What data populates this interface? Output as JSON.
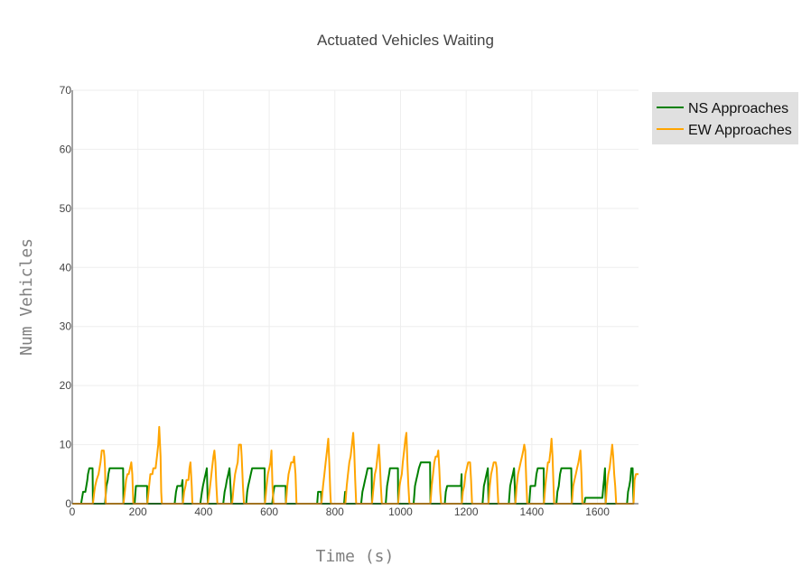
{
  "chart_data": {
    "type": "line",
    "title": "Actuated Vehicles Waiting",
    "xlabel": "Time (s)",
    "ylabel": "Num Vehicles",
    "xlim": [
      0,
      1725
    ],
    "ylim": [
      0,
      70
    ],
    "xticks": [
      0,
      200,
      400,
      600,
      800,
      1000,
      1200,
      1400,
      1600
    ],
    "yticks": [
      0,
      10,
      20,
      30,
      40,
      50,
      60,
      70
    ],
    "grid": true,
    "legend_position": "top-right",
    "series": [
      {
        "name": "NS Approaches",
        "color": "#008000",
        "points": [
          [
            0,
            0
          ],
          [
            27,
            0
          ],
          [
            30,
            1
          ],
          [
            33,
            2
          ],
          [
            40,
            2
          ],
          [
            43,
            3
          ],
          [
            46,
            4
          ],
          [
            48,
            5
          ],
          [
            52,
            6
          ],
          [
            62,
            6
          ],
          [
            63,
            0
          ],
          [
            100,
            0
          ],
          [
            104,
            3
          ],
          [
            108,
            4
          ],
          [
            110,
            5
          ],
          [
            114,
            6
          ],
          [
            155,
            6
          ],
          [
            156,
            0
          ],
          [
            190,
            0
          ],
          [
            194,
            3
          ],
          [
            228,
            3
          ],
          [
            229,
            0
          ],
          [
            312,
            0
          ],
          [
            316,
            2
          ],
          [
            320,
            3
          ],
          [
            333,
            3
          ],
          [
            336,
            4
          ],
          [
            337,
            0
          ],
          [
            390,
            0
          ],
          [
            395,
            2
          ],
          [
            398,
            3
          ],
          [
            402,
            4
          ],
          [
            406,
            5
          ],
          [
            410,
            6
          ],
          [
            413,
            0
          ],
          [
            460,
            0
          ],
          [
            464,
            2
          ],
          [
            468,
            3
          ],
          [
            471,
            4
          ],
          [
            475,
            5
          ],
          [
            479,
            6
          ],
          [
            485,
            0
          ],
          [
            530,
            0
          ],
          [
            533,
            2
          ],
          [
            536,
            3
          ],
          [
            540,
            4
          ],
          [
            544,
            5
          ],
          [
            548,
            6
          ],
          [
            586,
            6
          ],
          [
            587,
            0
          ],
          [
            609,
            0
          ],
          [
            613,
            2
          ],
          [
            616,
            3
          ],
          [
            650,
            3
          ],
          [
            651,
            0
          ],
          [
            746,
            0
          ],
          [
            749,
            2
          ],
          [
            758,
            2
          ],
          [
            759,
            0
          ],
          [
            828,
            0
          ],
          [
            831,
            2
          ],
          [
            832,
            0
          ],
          [
            880,
            0
          ],
          [
            884,
            2
          ],
          [
            888,
            3
          ],
          [
            892,
            4
          ],
          [
            896,
            5
          ],
          [
            900,
            6
          ],
          [
            912,
            6
          ],
          [
            913,
            0
          ],
          [
            955,
            0
          ],
          [
            959,
            3
          ],
          [
            962,
            4
          ],
          [
            965,
            5
          ],
          [
            968,
            6
          ],
          [
            992,
            6
          ],
          [
            993,
            0
          ],
          [
            1040,
            0
          ],
          [
            1044,
            3
          ],
          [
            1048,
            4
          ],
          [
            1052,
            5
          ],
          [
            1056,
            6
          ],
          [
            1062,
            7
          ],
          [
            1090,
            7
          ],
          [
            1091,
            0
          ],
          [
            1135,
            0
          ],
          [
            1138,
            2
          ],
          [
            1142,
            3
          ],
          [
            1184,
            3
          ],
          [
            1186,
            5
          ],
          [
            1187,
            0
          ],
          [
            1250,
            0
          ],
          [
            1254,
            3
          ],
          [
            1258,
            4
          ],
          [
            1262,
            5
          ],
          [
            1266,
            6
          ],
          [
            1268,
            0
          ],
          [
            1330,
            0
          ],
          [
            1334,
            3
          ],
          [
            1338,
            4
          ],
          [
            1342,
            5
          ],
          [
            1346,
            6
          ],
          [
            1350,
            0
          ],
          [
            1392,
            0
          ],
          [
            1396,
            3
          ],
          [
            1410,
            3
          ],
          [
            1414,
            5
          ],
          [
            1418,
            6
          ],
          [
            1436,
            6
          ],
          [
            1437,
            0
          ],
          [
            1475,
            0
          ],
          [
            1478,
            2
          ],
          [
            1482,
            3
          ],
          [
            1486,
            5
          ],
          [
            1490,
            6
          ],
          [
            1520,
            6
          ],
          [
            1522,
            0
          ],
          [
            1560,
            0
          ],
          [
            1563,
            1
          ],
          [
            1615,
            1
          ],
          [
            1618,
            3
          ],
          [
            1620,
            4
          ],
          [
            1623,
            6
          ],
          [
            1625,
            0
          ],
          [
            1690,
            0
          ],
          [
            1693,
            2
          ],
          [
            1697,
            3
          ],
          [
            1700,
            4
          ],
          [
            1703,
            6
          ],
          [
            1707,
            6
          ],
          [
            1710,
            0
          ]
        ]
      },
      {
        "name": "EW Approaches",
        "color": "#FFA500",
        "points": [
          [
            0,
            0
          ],
          [
            63,
            0
          ],
          [
            67,
            2
          ],
          [
            70,
            3
          ],
          [
            74,
            4
          ],
          [
            80,
            5
          ],
          [
            83,
            6
          ],
          [
            86,
            7
          ],
          [
            88,
            8
          ],
          [
            90,
            9
          ],
          [
            96,
            9
          ],
          [
            98,
            8
          ],
          [
            100,
            6
          ],
          [
            102,
            0
          ],
          [
            156,
            0
          ],
          [
            160,
            2
          ],
          [
            164,
            4
          ],
          [
            168,
            5
          ],
          [
            172,
            5
          ],
          [
            176,
            6
          ],
          [
            180,
            7
          ],
          [
            183,
            5
          ],
          [
            186,
            0
          ],
          [
            229,
            0
          ],
          [
            234,
            3
          ],
          [
            238,
            5
          ],
          [
            244,
            5
          ],
          [
            247,
            6
          ],
          [
            254,
            6
          ],
          [
            258,
            8
          ],
          [
            262,
            10
          ],
          [
            265,
            13
          ],
          [
            269,
            8
          ],
          [
            271,
            2
          ],
          [
            273,
            0
          ],
          [
            337,
            0
          ],
          [
            341,
            2
          ],
          [
            345,
            3
          ],
          [
            348,
            4
          ],
          [
            354,
            4
          ],
          [
            357,
            6
          ],
          [
            360,
            7
          ],
          [
            364,
            3
          ],
          [
            366,
            0
          ],
          [
            413,
            0
          ],
          [
            418,
            2
          ],
          [
            422,
            4
          ],
          [
            426,
            6
          ],
          [
            430,
            8
          ],
          [
            433,
            9
          ],
          [
            436,
            7
          ],
          [
            439,
            3
          ],
          [
            442,
            0
          ],
          [
            487,
            0
          ],
          [
            492,
            3
          ],
          [
            496,
            5
          ],
          [
            500,
            6
          ],
          [
            504,
            7
          ],
          [
            508,
            10
          ],
          [
            514,
            10
          ],
          [
            516,
            8
          ],
          [
            520,
            3
          ],
          [
            523,
            0
          ],
          [
            587,
            0
          ],
          [
            592,
            3
          ],
          [
            596,
            5
          ],
          [
            600,
            6
          ],
          [
            604,
            7
          ],
          [
            607,
            9
          ],
          [
            610,
            3
          ],
          [
            613,
            0
          ],
          [
            651,
            0
          ],
          [
            655,
            3
          ],
          [
            659,
            5
          ],
          [
            663,
            6
          ],
          [
            667,
            7
          ],
          [
            673,
            7
          ],
          [
            676,
            8
          ],
          [
            680,
            5
          ],
          [
            683,
            0
          ],
          [
            759,
            0
          ],
          [
            764,
            3
          ],
          [
            768,
            5
          ],
          [
            772,
            7
          ],
          [
            776,
            9
          ],
          [
            780,
            11
          ],
          [
            783,
            7
          ],
          [
            786,
            2
          ],
          [
            788,
            0
          ],
          [
            832,
            0
          ],
          [
            836,
            3
          ],
          [
            840,
            5
          ],
          [
            844,
            7
          ],
          [
            848,
            8
          ],
          [
            852,
            10
          ],
          [
            856,
            12
          ],
          [
            859,
            9
          ],
          [
            862,
            4
          ],
          [
            865,
            0
          ],
          [
            913,
            0
          ],
          [
            918,
            3
          ],
          [
            922,
            5
          ],
          [
            926,
            6
          ],
          [
            930,
            8
          ],
          [
            934,
            10
          ],
          [
            937,
            7
          ],
          [
            940,
            3
          ],
          [
            943,
            0
          ],
          [
            993,
            0
          ],
          [
            997,
            3
          ],
          [
            1000,
            4
          ],
          [
            1004,
            5
          ],
          [
            1007,
            7
          ],
          [
            1011,
            9
          ],
          [
            1015,
            11
          ],
          [
            1018,
            12
          ],
          [
            1021,
            7
          ],
          [
            1024,
            3
          ],
          [
            1027,
            0
          ],
          [
            1091,
            0
          ],
          [
            1095,
            3
          ],
          [
            1099,
            5
          ],
          [
            1103,
            7
          ],
          [
            1107,
            8
          ],
          [
            1112,
            8
          ],
          [
            1115,
            9
          ],
          [
            1118,
            6
          ],
          [
            1121,
            2
          ],
          [
            1124,
            0
          ],
          [
            1187,
            0
          ],
          [
            1190,
            2
          ],
          [
            1194,
            3
          ],
          [
            1198,
            5
          ],
          [
            1202,
            6
          ],
          [
            1206,
            7
          ],
          [
            1212,
            7
          ],
          [
            1215,
            4
          ],
          [
            1218,
            0
          ],
          [
            1268,
            0
          ],
          [
            1272,
            3
          ],
          [
            1276,
            5
          ],
          [
            1280,
            6
          ],
          [
            1284,
            7
          ],
          [
            1290,
            7
          ],
          [
            1293,
            6
          ],
          [
            1296,
            2
          ],
          [
            1298,
            0
          ],
          [
            1350,
            0
          ],
          [
            1354,
            3
          ],
          [
            1358,
            5
          ],
          [
            1362,
            6
          ],
          [
            1366,
            7
          ],
          [
            1370,
            8
          ],
          [
            1374,
            9
          ],
          [
            1377,
            10
          ],
          [
            1380,
            9
          ],
          [
            1383,
            4
          ],
          [
            1386,
            0
          ],
          [
            1437,
            0
          ],
          [
            1441,
            3
          ],
          [
            1445,
            5
          ],
          [
            1449,
            7
          ],
          [
            1453,
            7
          ],
          [
            1457,
            9
          ],
          [
            1460,
            11
          ],
          [
            1463,
            8
          ],
          [
            1466,
            3
          ],
          [
            1468,
            0
          ],
          [
            1522,
            0
          ],
          [
            1526,
            3
          ],
          [
            1530,
            4
          ],
          [
            1534,
            5
          ],
          [
            1538,
            6
          ],
          [
            1542,
            7
          ],
          [
            1545,
            8
          ],
          [
            1548,
            9
          ],
          [
            1551,
            5
          ],
          [
            1554,
            0
          ],
          [
            1625,
            0
          ],
          [
            1629,
            3
          ],
          [
            1633,
            5
          ],
          [
            1637,
            6
          ],
          [
            1641,
            8
          ],
          [
            1645,
            10
          ],
          [
            1648,
            8
          ],
          [
            1651,
            5
          ],
          [
            1654,
            3
          ],
          [
            1657,
            0
          ],
          [
            1710,
            0
          ],
          [
            1713,
            4
          ],
          [
            1717,
            5
          ],
          [
            1725,
            5
          ]
        ]
      }
    ]
  }
}
